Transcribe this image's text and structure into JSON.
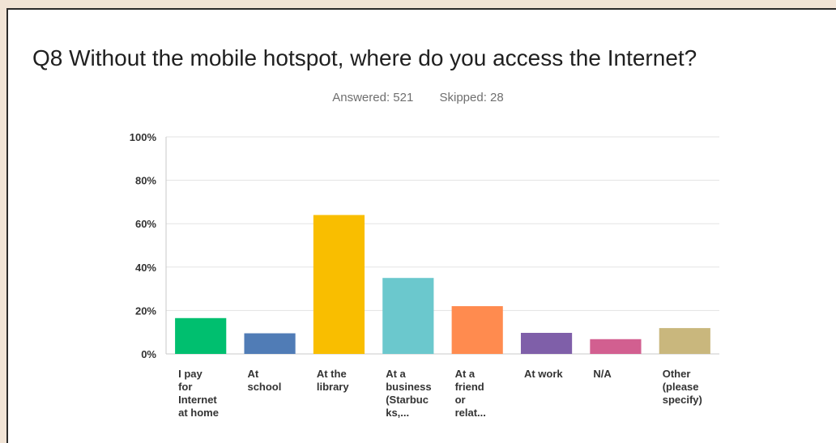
{
  "title": "Q8 Without the mobile hotspot, where do you access the Internet?",
  "meta": {
    "answered": "Answered: 521",
    "skipped": "Skipped: 28"
  },
  "chart_data": {
    "type": "bar",
    "title": "Q8 Without the mobile hotspot, where do you access the Internet?",
    "xlabel": "",
    "ylabel": "",
    "ylim": [
      0,
      100
    ],
    "yticks": [
      "0%",
      "20%",
      "40%",
      "60%",
      "80%",
      "100%"
    ],
    "grid": true,
    "categories": [
      [
        "I pay",
        "for",
        "Internet",
        "at home"
      ],
      [
        "At",
        "school"
      ],
      [
        "At the",
        "library"
      ],
      [
        "At a",
        "business",
        "(Starbuc",
        "ks,..."
      ],
      [
        "At a",
        "friend",
        "or",
        "relat..."
      ],
      [
        "At work"
      ],
      [
        "N/A"
      ],
      [
        "Other",
        "(please",
        "specify)"
      ]
    ],
    "values": [
      16.5,
      9.5,
      64,
      35,
      22,
      9.7,
      6.8,
      11.9
    ],
    "colors": [
      "#00bf6f",
      "#507cb6",
      "#f9be00",
      "#6bc8cd",
      "#ff8b4f",
      "#7f5fa9",
      "#d25f90",
      "#c9b77d"
    ]
  }
}
